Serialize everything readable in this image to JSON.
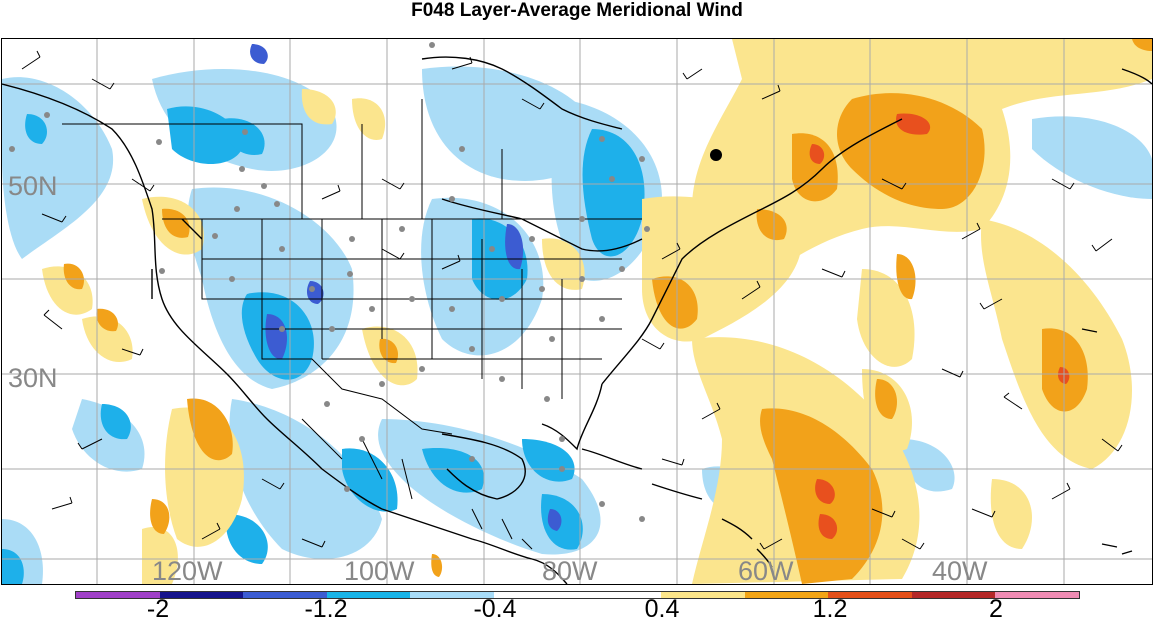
{
  "title": "F048 Layer-Average Meridional Wind",
  "lat_labels": [
    "50N",
    "30N"
  ],
  "lon_labels": [
    "120W",
    "100W",
    "80W",
    "60W",
    "40W"
  ],
  "colorbar": {
    "colors": [
      "#a040c8",
      "#16148c",
      "#3c5cd2",
      "#18b4e8",
      "#a8dcf8",
      "#ffffff",
      "#ffffff",
      "#fde68a",
      "#f2a416",
      "#e4501a",
      "#b42828",
      "#f08cb4"
    ],
    "tick_labels": [
      "-2",
      "-1.2",
      "-0.4",
      "0.4",
      "1.2",
      "2"
    ]
  },
  "palette": {
    "light_blue": "#aadcf6",
    "mid_blue": "#1eb0ea",
    "dark_blue": "#3c5cd2",
    "light_yellow": "#fbe58e",
    "orange": "#f2a21a",
    "red_orange": "#e8501e"
  }
}
